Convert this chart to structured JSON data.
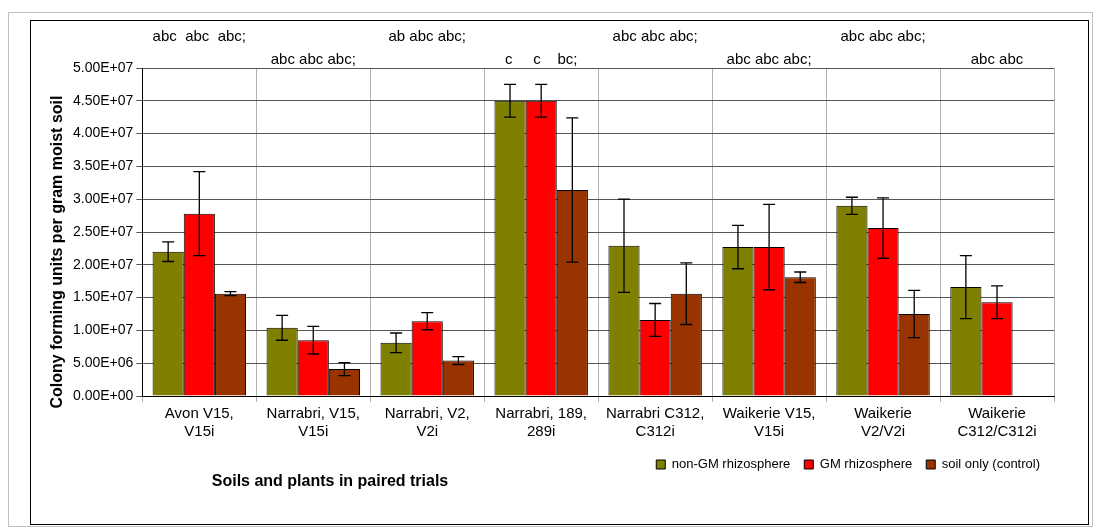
{
  "chart_data": {
    "type": "bar",
    "xlabel": "Soils and plants in paired trials",
    "ylabel": "Colony forming units per gram moist soil",
    "categories": [
      "Avon V15, V15i",
      "Narrabri, V15, V15i",
      "Narrabri, V2, V2i",
      "Narrabri, 189, 289i",
      "Narrabri C312, C312i",
      "Waikerie V15, V15i",
      "Waikerie V2/V2i",
      "Waikerie C312/C312i"
    ],
    "series": [
      {
        "name": "non-GM rhizosphere",
        "color": "#808000",
        "values": [
          22000000,
          10400000,
          8100000,
          45000000,
          22900000,
          22700000,
          29000000,
          16600000
        ],
        "errors": [
          1500000,
          1900000,
          1500000,
          2500000,
          7100000,
          3300000,
          1300000,
          4800000
        ]
      },
      {
        "name": "GM rhizosphere",
        "color": "#ff0000",
        "values": [
          27800000,
          8500000,
          11400000,
          45000000,
          11600000,
          22700000,
          25600000,
          14300000
        ],
        "errors": [
          6400000,
          2100000,
          1300000,
          2500000,
          2500000,
          6500000,
          4600000,
          2500000
        ]
      },
      {
        "name": "soil only (control)",
        "color": "#993300",
        "values": [
          15600000,
          4100000,
          5400000,
          31400000,
          15600000,
          18100000,
          12500000,
          null
        ],
        "errors": [
          300000,
          1000000,
          600000,
          11000000,
          4700000,
          800000,
          3600000,
          null
        ]
      }
    ],
    "ylim": [
      0,
      50000000
    ],
    "yticks": [
      {
        "value": 0,
        "label": "0.00E+00"
      },
      {
        "value": 5000000,
        "label": "5.00E+06"
      },
      {
        "value": 10000000,
        "label": "1.00E+07"
      },
      {
        "value": 15000000,
        "label": "1.50E+07"
      },
      {
        "value": 20000000,
        "label": "2.00E+07"
      },
      {
        "value": 25000000,
        "label": "2.50E+07"
      },
      {
        "value": 30000000,
        "label": "3.00E+07"
      },
      {
        "value": 35000000,
        "label": "3.50E+07"
      },
      {
        "value": 40000000,
        "label": "4.00E+07"
      },
      {
        "value": 45000000,
        "label": "4.50E+07"
      },
      {
        "value": 50000000,
        "label": "5.00E+07"
      }
    ],
    "annotations": [
      "abc  abc  abc;",
      "abc abc abc;",
      "ab abc abc;",
      "c     c    bc;",
      "abc abc abc;",
      "abc abc abc;",
      "abc abc abc;",
      "abc abc"
    ],
    "grid": true,
    "legend": "bottom right"
  }
}
